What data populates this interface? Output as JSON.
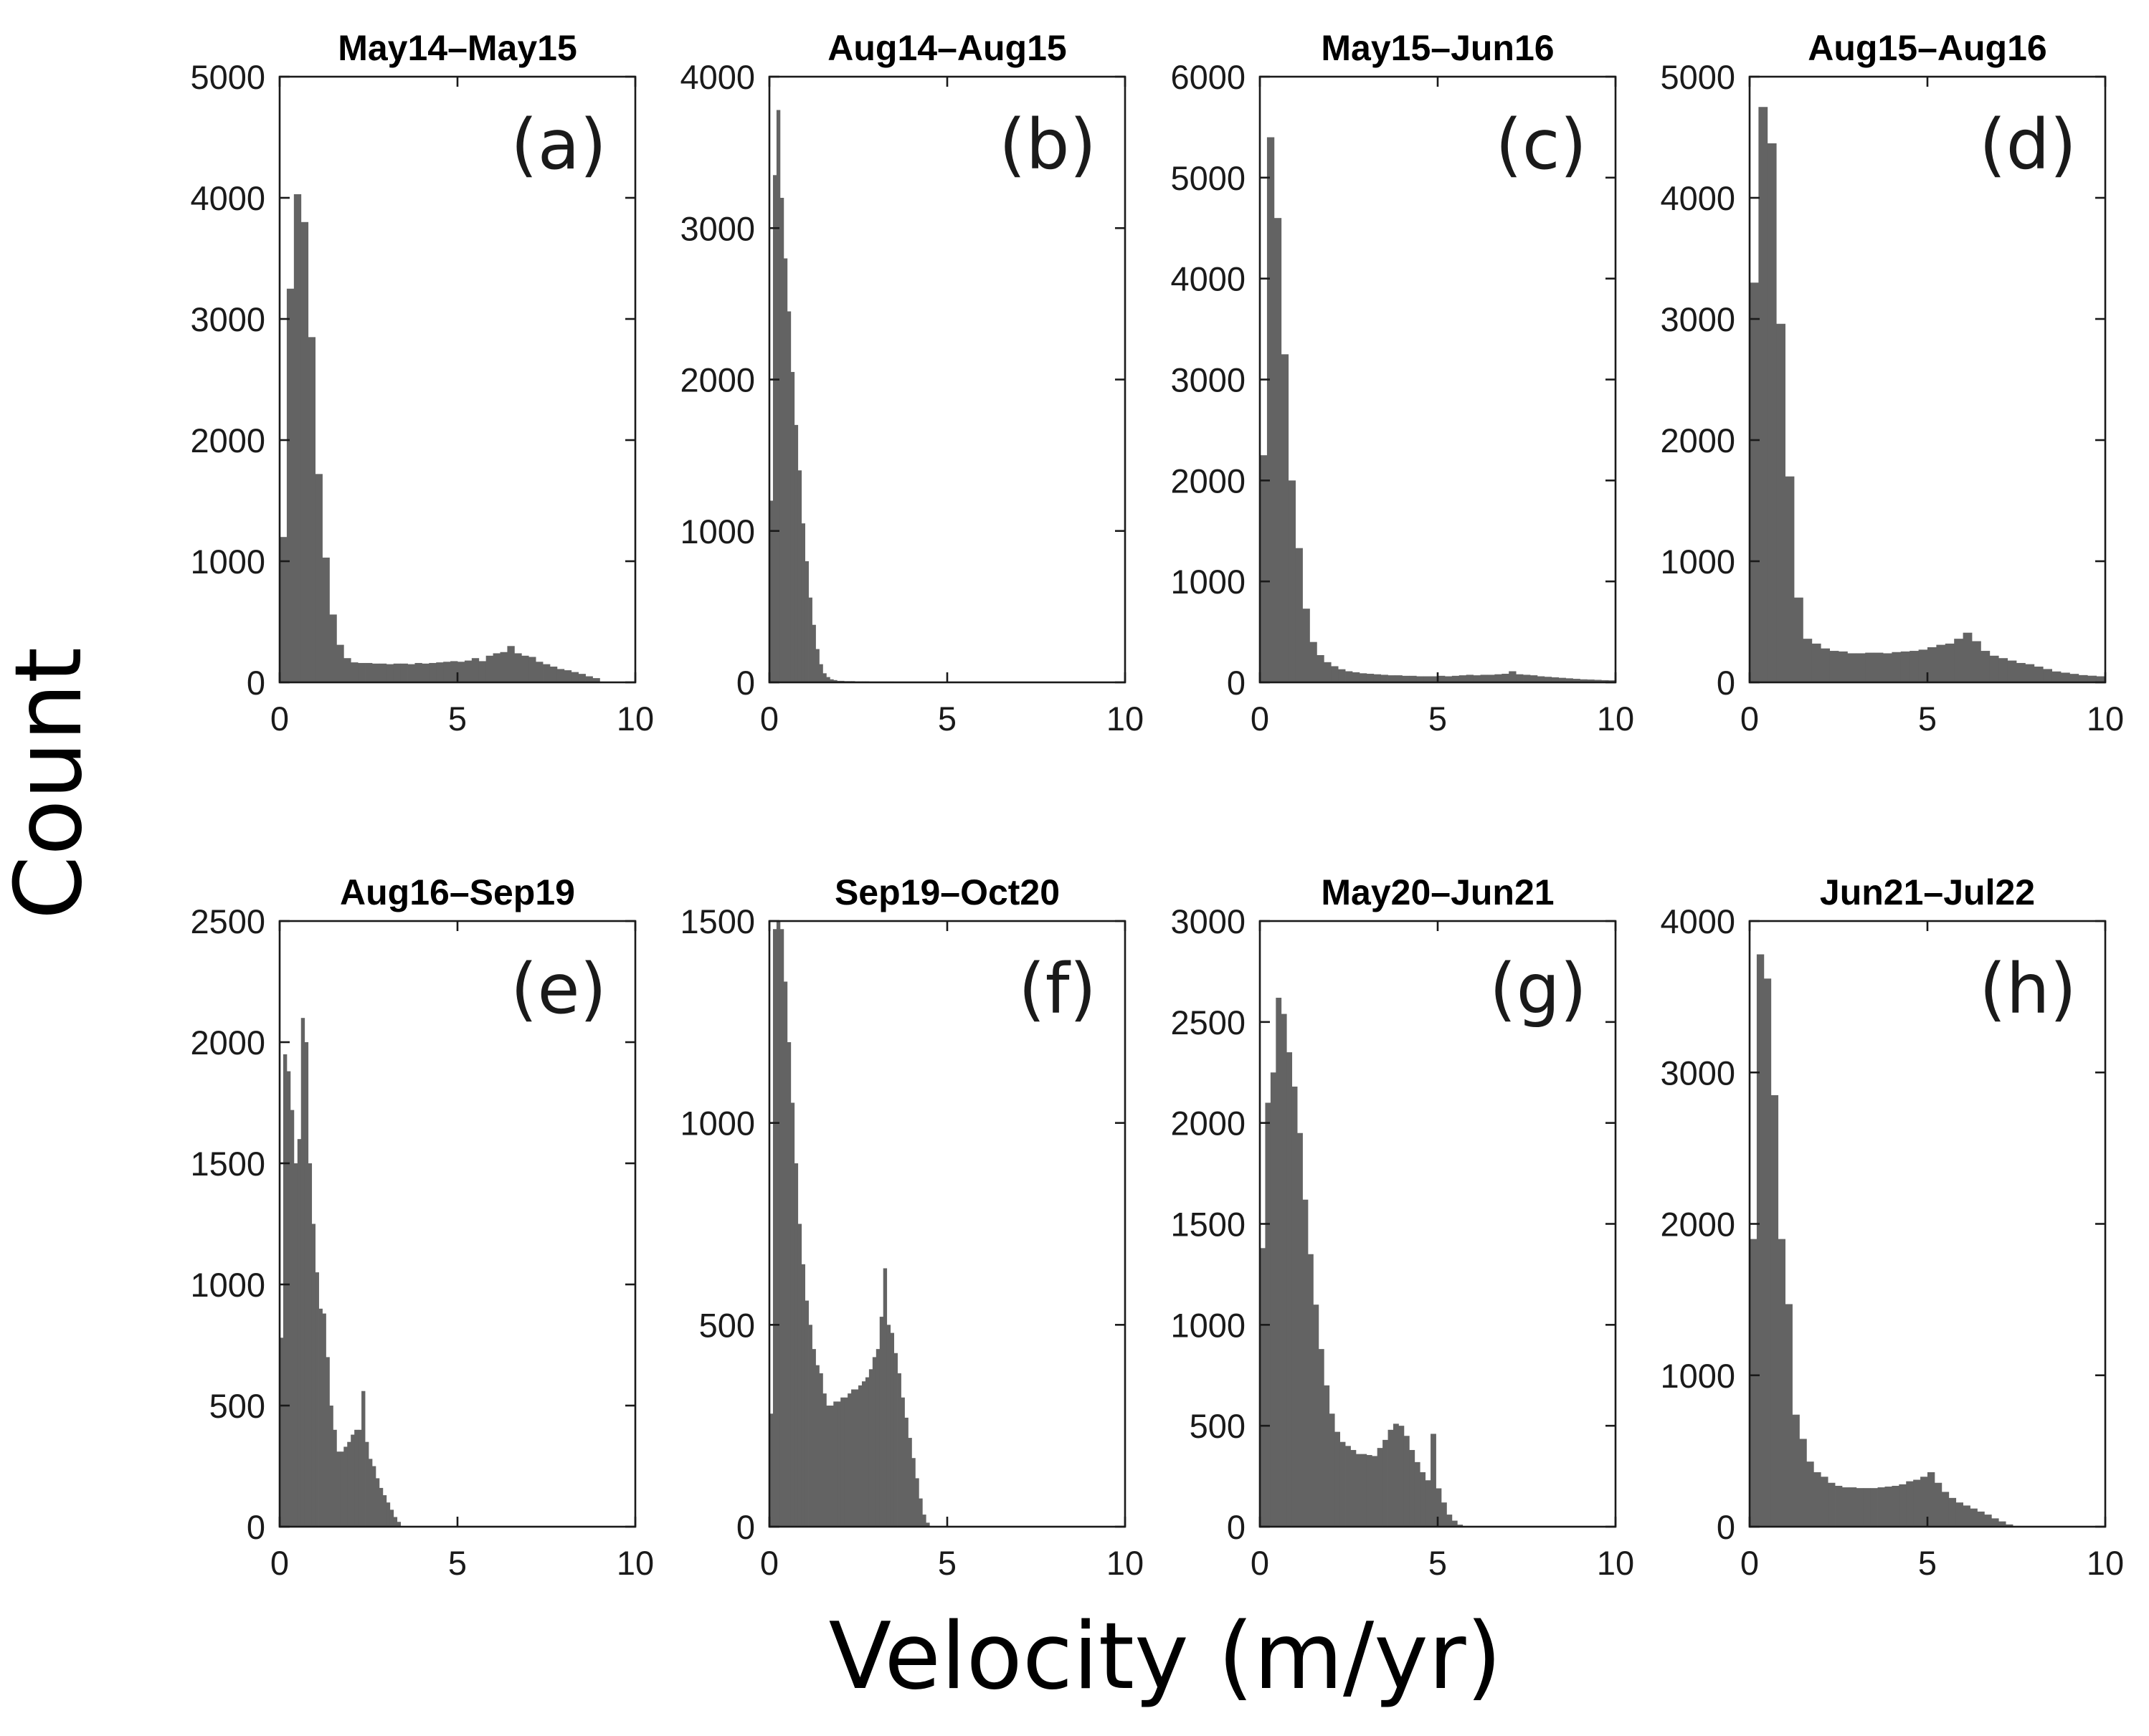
{
  "figure": {
    "xlabel": "Velocity (m/yr)",
    "ylabel": "Count",
    "bar_color": "#636363"
  },
  "chart_data": [
    {
      "type": "bar",
      "tag": "(a)",
      "title": "May14–May15",
      "xlim": [
        0,
        10
      ],
      "ylim": [
        0,
        5000
      ],
      "xticks": [
        0,
        5,
        10
      ],
      "yticks": [
        0,
        1000,
        2000,
        3000,
        4000,
        5000
      ],
      "bin_width": 0.2,
      "values": [
        1200,
        3250,
        4030,
        3800,
        2850,
        1720,
        1030,
        560,
        310,
        200,
        165,
        160,
        160,
        155,
        155,
        150,
        155,
        155,
        150,
        160,
        155,
        160,
        165,
        170,
        175,
        170,
        180,
        200,
        175,
        220,
        240,
        250,
        300,
        240,
        220,
        210,
        170,
        150,
        130,
        110,
        100,
        85,
        70,
        50,
        35,
        0,
        0,
        0,
        0,
        0
      ]
    },
    {
      "type": "bar",
      "tag": "(b)",
      "title": "Aug14–Aug15",
      "xlim": [
        0,
        10
      ],
      "ylim": [
        0,
        4000
      ],
      "xticks": [
        0,
        5,
        10
      ],
      "yticks": [
        0,
        1000,
        2000,
        3000,
        4000
      ],
      "bin_width": 0.1,
      "values": [
        1200,
        3350,
        3780,
        3200,
        2800,
        2450,
        2050,
        1700,
        1400,
        1050,
        800,
        560,
        380,
        220,
        120,
        60,
        35,
        20,
        15,
        10,
        10,
        8,
        8,
        8,
        6,
        6,
        6,
        6,
        5,
        5,
        5,
        5,
        5,
        5,
        5,
        4,
        4,
        4,
        4,
        4,
        4,
        4,
        4,
        4,
        4,
        3,
        3,
        3,
        3,
        3,
        3,
        3,
        3,
        3,
        3,
        3,
        3,
        3,
        3,
        3,
        3,
        3,
        3,
        3,
        3,
        3,
        3,
        3,
        3,
        3,
        3,
        2,
        2,
        2,
        2,
        2,
        2,
        2,
        2,
        2,
        2,
        2,
        2,
        2,
        2,
        2,
        2,
        2,
        2,
        2,
        2,
        2,
        2,
        2,
        2,
        2,
        2,
        2,
        2,
        2
      ]
    },
    {
      "type": "bar",
      "tag": "(c)",
      "title": "May15–Jun16",
      "xlim": [
        0,
        10
      ],
      "ylim": [
        0,
        6000
      ],
      "xticks": [
        0,
        5,
        10
      ],
      "yticks": [
        0,
        1000,
        2000,
        3000,
        4000,
        5000,
        6000
      ],
      "bin_width": 0.2,
      "values": [
        2250,
        5400,
        4600,
        3250,
        2000,
        1330,
        730,
        400,
        270,
        200,
        160,
        130,
        110,
        100,
        90,
        85,
        80,
        75,
        70,
        70,
        65,
        65,
        60,
        60,
        60,
        65,
        60,
        65,
        70,
        75,
        70,
        75,
        75,
        80,
        85,
        110,
        80,
        75,
        70,
        60,
        55,
        50,
        45,
        40,
        35,
        30,
        28,
        25,
        22,
        20
      ]
    },
    {
      "type": "bar",
      "tag": "(d)",
      "title": "Aug15–Aug16",
      "xlim": [
        0,
        10
      ],
      "ylim": [
        0,
        5000
      ],
      "xticks": [
        0,
        5,
        10
      ],
      "yticks": [
        0,
        1000,
        2000,
        3000,
        4000,
        5000
      ],
      "bin_width": 0.25,
      "values": [
        3300,
        4750,
        4450,
        2960,
        1700,
        700,
        360,
        320,
        280,
        260,
        255,
        240,
        240,
        245,
        245,
        240,
        250,
        255,
        260,
        270,
        290,
        310,
        320,
        360,
        410,
        340,
        260,
        220,
        200,
        180,
        160,
        150,
        130,
        110,
        90,
        80,
        70,
        60,
        55,
        50
      ]
    },
    {
      "type": "bar",
      "tag": "(e)",
      "title": "Aug16–Sep19",
      "xlim": [
        0,
        10
      ],
      "ylim": [
        0,
        2500
      ],
      "xticks": [
        0,
        5,
        10
      ],
      "yticks": [
        0,
        500,
        1000,
        1500,
        2000,
        2500
      ],
      "bin_width": 0.1,
      "values": [
        780,
        1950,
        1880,
        1720,
        1500,
        1600,
        2100,
        2000,
        1500,
        1250,
        1050,
        900,
        880,
        700,
        500,
        400,
        310,
        310,
        330,
        350,
        380,
        400,
        400,
        560,
        350,
        280,
        250,
        200,
        160,
        130,
        100,
        70,
        40,
        20,
        0
      ]
    },
    {
      "type": "bar",
      "tag": "(f)",
      "title": "Sep19–Oct20",
      "xlim": [
        0,
        10
      ],
      "ylim": [
        0,
        1500
      ],
      "xticks": [
        0,
        5,
        10
      ],
      "yticks": [
        0,
        500,
        1000,
        1500
      ],
      "bin_width": 0.1,
      "values": [
        280,
        1480,
        1500,
        1480,
        1350,
        1200,
        1050,
        900,
        750,
        650,
        560,
        500,
        440,
        400,
        380,
        330,
        300,
        300,
        310,
        310,
        320,
        320,
        330,
        340,
        340,
        350,
        360,
        370,
        390,
        420,
        440,
        520,
        640,
        500,
        480,
        430,
        380,
        320,
        270,
        220,
        170,
        120,
        70,
        30,
        10,
        0
      ]
    },
    {
      "type": "bar",
      "tag": "(g)",
      "title": "May20–Jun21",
      "xlim": [
        0,
        10
      ],
      "ylim": [
        0,
        3000
      ],
      "xticks": [
        0,
        5,
        10
      ],
      "yticks": [
        0,
        500,
        1000,
        1500,
        2000,
        2500,
        3000
      ],
      "bin_width": 0.15,
      "values": [
        1380,
        2100,
        2250,
        2620,
        2540,
        2350,
        2180,
        1950,
        1620,
        1350,
        1100,
        880,
        700,
        560,
        470,
        420,
        400,
        380,
        360,
        360,
        355,
        350,
        390,
        430,
        480,
        510,
        500,
        450,
        380,
        320,
        270,
        230,
        460,
        190,
        120,
        60,
        30,
        10,
        0,
        0
      ]
    },
    {
      "type": "bar",
      "tag": "(h)",
      "title": "Jun21–Jul22",
      "xlim": [
        0,
        10
      ],
      "ylim": [
        0,
        4000
      ],
      "xticks": [
        0,
        5,
        10
      ],
      "yticks": [
        0,
        1000,
        2000,
        3000,
        4000
      ],
      "bin_width": 0.2,
      "values": [
        1900,
        3780,
        3620,
        2850,
        1900,
        1470,
        740,
        580,
        430,
        360,
        330,
        290,
        270,
        260,
        260,
        255,
        255,
        255,
        260,
        265,
        270,
        280,
        300,
        310,
        330,
        360,
        290,
        230,
        190,
        160,
        140,
        120,
        100,
        80,
        55,
        35,
        15,
        5,
        0,
        0
      ]
    }
  ]
}
